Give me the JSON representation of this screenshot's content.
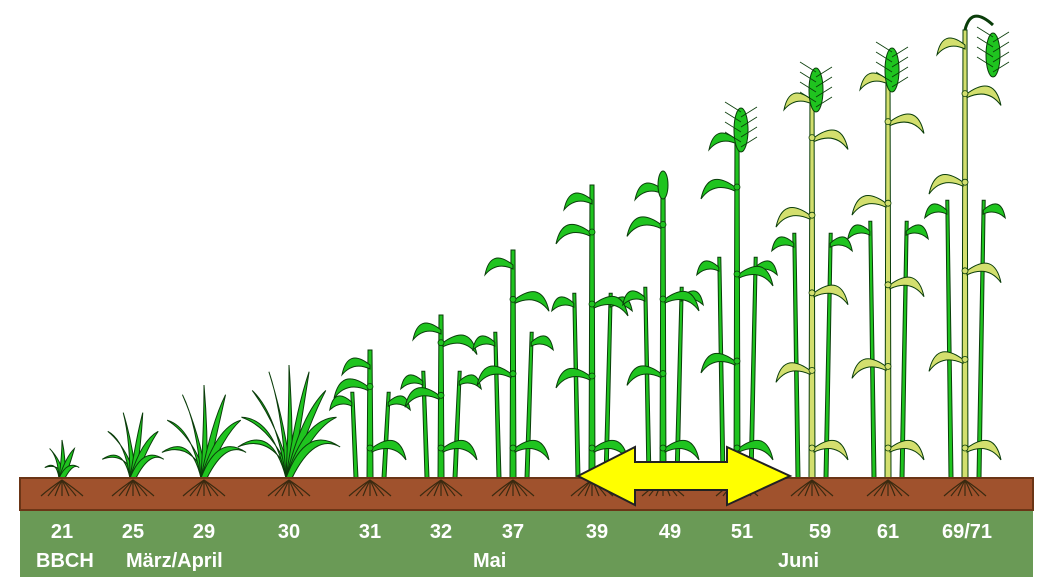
{
  "colors": {
    "soil": "#a0522d",
    "soil_edge": "#6b3516",
    "band": "#6a9a56",
    "plant_young": "#1fc41f",
    "plant_ripe": "#d3df6e",
    "outline": "#0a3d0a",
    "arrow": "#ffff00"
  },
  "stages": [
    "21",
    "25",
    "29",
    "30",
    "31",
    "32",
    "37",
    "39",
    "49",
    "51",
    "59",
    "61",
    "69/71"
  ],
  "row2": {
    "prefix": "BBCH",
    "month1": "März/April",
    "month2": "Mai",
    "month3": "Juni"
  },
  "arrow": {
    "from_stage": "39",
    "to_stage": "59",
    "direction": "double"
  }
}
